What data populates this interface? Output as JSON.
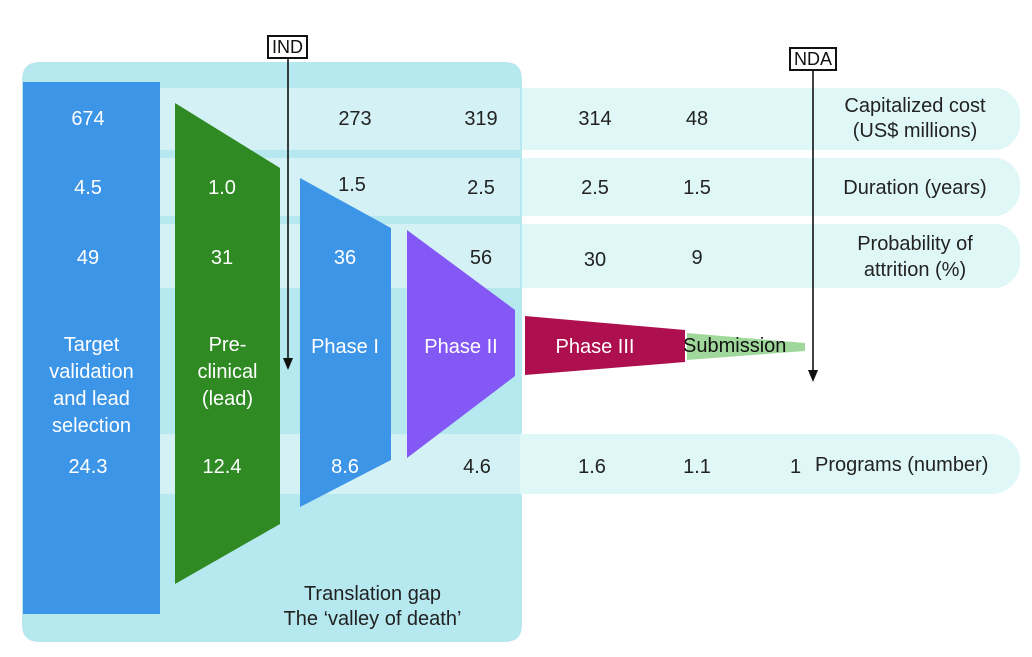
{
  "milestones": {
    "ind": "IND",
    "nda": "NDA"
  },
  "row_labels": {
    "cost_line1": "Capitalized cost",
    "cost_line2": "(US$ millions)",
    "duration": "Duration (years)",
    "attrition_line1": "Probability of",
    "attrition_line2": "attrition (%)",
    "programs": "Programs (number)"
  },
  "stages": [
    {
      "label_lines": [
        "Target",
        "validation",
        "and lead",
        "selection"
      ],
      "cost": "674",
      "duration": "4.5",
      "attrition": "49",
      "programs": "24.3",
      "color": "#3d95e8"
    },
    {
      "label_lines": [
        "Pre-",
        "clinical",
        "(lead)"
      ],
      "cost": "",
      "duration": "1.0",
      "attrition": "31",
      "programs": "12.4",
      "color": "#2f8a23"
    },
    {
      "label_lines": [
        "Phase I"
      ],
      "cost": "273",
      "duration": "1.5",
      "attrition": "36",
      "programs": "8.6",
      "color": "#3d95e8"
    },
    {
      "label_lines": [
        "Phase II"
      ],
      "cost": "319",
      "duration": "2.5",
      "attrition": "56",
      "programs": "4.6",
      "color": "#8358f5"
    },
    {
      "label_lines": [
        "Phase III"
      ],
      "cost": "314",
      "duration": "2.5",
      "attrition": "30",
      "programs": "1.6",
      "color": "#ad0f4f"
    },
    {
      "label_lines": [
        "Submission"
      ],
      "cost": "48",
      "duration": "1.5",
      "attrition": "9",
      "programs": "1.1",
      "color": "#9fd89a"
    }
  ],
  "final_programs": "1",
  "gap": {
    "line1": "Translation gap",
    "line2": "The ‘valley of death’"
  },
  "colors": {
    "panel": "#b5e8ef",
    "band": "#e0f7f7",
    "arrow": "#111111"
  }
}
